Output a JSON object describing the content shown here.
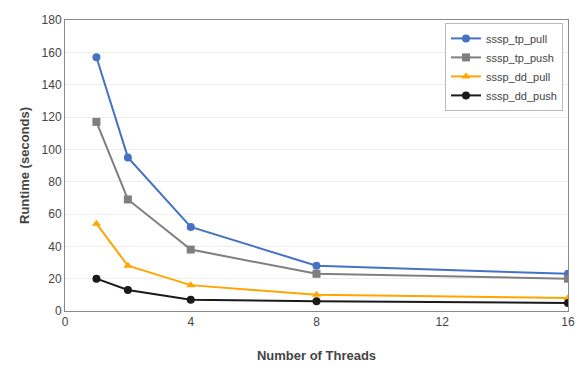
{
  "chart_data": {
    "type": "line",
    "xlabel": "Number of Threads",
    "ylabel": "Runtime (seconds)",
    "x": [
      1,
      2,
      4,
      8,
      16
    ],
    "series": [
      {
        "name": "sssp_tp_pull",
        "color": "#4472c4",
        "marker": "circle",
        "values": [
          157,
          95,
          52,
          28,
          23
        ]
      },
      {
        "name": "sssp_tp_push",
        "color": "#7f7f7f",
        "marker": "square",
        "values": [
          117,
          69,
          38,
          23,
          20
        ]
      },
      {
        "name": "sssp_dd_pull",
        "color": "#ffa500",
        "marker": "triangle-up",
        "values": [
          54,
          28,
          16,
          10,
          8
        ]
      },
      {
        "name": "sssp_dd_push",
        "color": "#1a1a1a",
        "marker": "circle",
        "values": [
          20,
          13,
          7,
          6,
          5
        ]
      }
    ],
    "xlim": [
      0,
      16
    ],
    "xticks": [
      0,
      4,
      8,
      12,
      16
    ],
    "ylim": [
      0,
      180
    ],
    "yticks": [
      0,
      20,
      40,
      60,
      80,
      100,
      120,
      140,
      160,
      180
    ],
    "grid": "y",
    "legend": "upper right"
  }
}
